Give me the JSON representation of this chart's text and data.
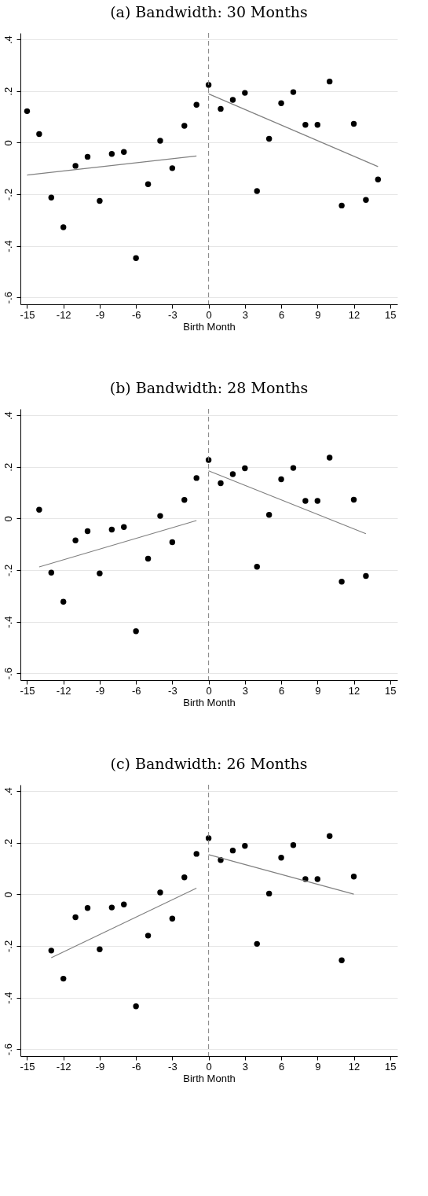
{
  "chart_data": [
    {
      "type": "scatter",
      "title": "(a) Bandwidth: 30 Months",
      "xlabel": "Birth Month",
      "xlim": [
        -15.55,
        15.6
      ],
      "xticks": [
        -15,
        -12,
        -9,
        -6,
        -3,
        0,
        3,
        6,
        9,
        12,
        15
      ],
      "ylim": [
        -0.627,
        0.425
      ],
      "yticks": [
        {
          "value": -0.6,
          "label": "-.6"
        },
        {
          "value": -0.4,
          "label": "-.4"
        },
        {
          "value": -0.2,
          "label": "-.2"
        },
        {
          "value": 0,
          "label": "0"
        },
        {
          "value": 0.2,
          "label": ".2"
        },
        {
          "value": 0.4,
          "label": ".4"
        }
      ],
      "grid": "y",
      "marker": "circle",
      "series": [
        {
          "color": "#000000",
          "x": [
            -15,
            -14,
            -13,
            -12,
            -11,
            -10,
            -9,
            -8,
            -7,
            -6,
            -5,
            -4,
            -3,
            -2,
            -1,
            0,
            1,
            2,
            3,
            4,
            5,
            6,
            7,
            8,
            9,
            10,
            11,
            12,
            13,
            14
          ],
          "values": [
            0.122,
            0.033,
            -0.213,
            -0.328,
            -0.09,
            -0.055,
            -0.226,
            -0.044,
            -0.036,
            -0.448,
            -0.161,
            0.007,
            -0.099,
            0.065,
            0.147,
            0.224,
            0.131,
            0.166,
            0.193,
            -0.188,
            0.015,
            0.153,
            0.196,
            0.069,
            0.069,
            0.237,
            -0.244,
            0.073,
            -0.222,
            -0.143
          ]
        },
        {
          "type": "line",
          "marker": "none",
          "color": "#808080",
          "x": [
            -15,
            -1
          ],
          "values": [
            -0.126,
            -0.052
          ]
        },
        {
          "type": "line",
          "marker": "none",
          "color": "#808080",
          "x": [
            0,
            14
          ],
          "values": [
            0.189,
            -0.093
          ]
        }
      ],
      "ref_lines": [
        {
          "axis": "x",
          "value": 0,
          "color": "#808080",
          "line_style": "dashed"
        }
      ]
    },
    {
      "type": "scatter",
      "title": "(b) Bandwidth: 28 Months",
      "xlabel": "Birth Month",
      "xlim": [
        -15.55,
        15.6
      ],
      "xticks": [
        -15,
        -12,
        -9,
        -6,
        -3,
        0,
        3,
        6,
        9,
        12,
        15
      ],
      "ylim": [
        -0.627,
        0.425
      ],
      "yticks": [
        {
          "value": -0.6,
          "label": "-.6"
        },
        {
          "value": -0.4,
          "label": "-.4"
        },
        {
          "value": -0.2,
          "label": "-.2"
        },
        {
          "value": 0,
          "label": "0"
        },
        {
          "value": 0.2,
          "label": ".2"
        },
        {
          "value": 0.4,
          "label": ".4"
        }
      ],
      "grid": "y",
      "marker": "circle",
      "series": [
        {
          "color": "#000000",
          "x": [
            -14,
            -13,
            -12,
            -11,
            -10,
            -9,
            -8,
            -7,
            -6,
            -5,
            -4,
            -3,
            -2,
            -1,
            0,
            1,
            2,
            3,
            4,
            5,
            6,
            7,
            8,
            9,
            10,
            11,
            12,
            13
          ],
          "values": [
            0.034,
            -0.21,
            -0.323,
            -0.085,
            -0.049,
            -0.213,
            -0.043,
            -0.033,
            -0.437,
            -0.156,
            0.01,
            -0.092,
            0.072,
            0.157,
            0.227,
            0.137,
            0.172,
            0.195,
            -0.187,
            0.014,
            0.152,
            0.196,
            0.068,
            0.068,
            0.236,
            -0.245,
            0.073,
            -0.223
          ]
        },
        {
          "type": "line",
          "marker": "none",
          "color": "#808080",
          "x": [
            -14,
            -1
          ],
          "values": [
            -0.188,
            -0.008
          ]
        },
        {
          "type": "line",
          "marker": "none",
          "color": "#808080",
          "x": [
            0,
            13
          ],
          "values": [
            0.185,
            -0.059
          ]
        }
      ],
      "ref_lines": [
        {
          "axis": "x",
          "value": 0,
          "color": "#808080",
          "line_style": "dashed"
        }
      ]
    },
    {
      "type": "scatter",
      "title": "(c) Bandwidth: 26 Months",
      "xlabel": "Birth Month",
      "xlim": [
        -15.55,
        15.6
      ],
      "xticks": [
        -15,
        -12,
        -9,
        -6,
        -3,
        0,
        3,
        6,
        9,
        12,
        15
      ],
      "ylim": [
        -0.627,
        0.425
      ],
      "yticks": [
        {
          "value": -0.6,
          "label": "-.6"
        },
        {
          "value": -0.4,
          "label": "-.4"
        },
        {
          "value": -0.2,
          "label": "-.2"
        },
        {
          "value": 0,
          "label": "0"
        },
        {
          "value": 0.2,
          "label": ".2"
        },
        {
          "value": 0.4,
          "label": ".4"
        }
      ],
      "grid": "y",
      "marker": "circle",
      "series": [
        {
          "color": "#000000",
          "x": [
            -13,
            -12,
            -11,
            -10,
            -9,
            -8,
            -7,
            -6,
            -5,
            -4,
            -3,
            -2,
            -1,
            0,
            1,
            2,
            3,
            4,
            5,
            6,
            7,
            8,
            9,
            10,
            11,
            12
          ],
          "values": [
            -0.218,
            -0.327,
            -0.089,
            -0.053,
            -0.213,
            -0.051,
            -0.039,
            -0.434,
            -0.16,
            0.007,
            -0.094,
            0.066,
            0.157,
            0.218,
            0.133,
            0.17,
            0.188,
            -0.192,
            0.003,
            0.142,
            0.191,
            0.059,
            0.059,
            0.226,
            -0.256,
            0.069
          ]
        },
        {
          "type": "line",
          "marker": "none",
          "color": "#808080",
          "x": [
            -13,
            -1
          ],
          "values": [
            -0.246,
            0.024
          ]
        },
        {
          "type": "line",
          "marker": "none",
          "color": "#808080",
          "x": [
            0,
            12
          ],
          "values": [
            0.154,
            0.001
          ]
        }
      ],
      "ref_lines": [
        {
          "axis": "x",
          "value": 0,
          "color": "#808080",
          "line_style": "dashed"
        }
      ]
    }
  ]
}
